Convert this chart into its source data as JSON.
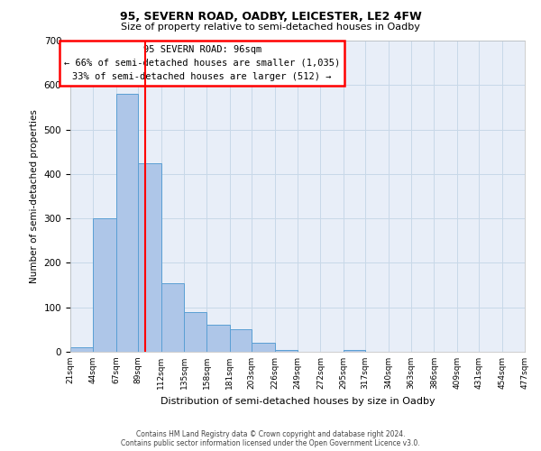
{
  "title1": "95, SEVERN ROAD, OADBY, LEICESTER, LE2 4FW",
  "title2": "Size of property relative to semi-detached houses in Oadby",
  "xlabel": "Distribution of semi-detached houses by size in Oadby",
  "ylabel": "Number of semi-detached properties",
  "footnote": "Contains HM Land Registry data © Crown copyright and database right 2024.\nContains public sector information licensed under the Open Government Licence v3.0.",
  "bin_edges": [
    21,
    44,
    67,
    89,
    112,
    135,
    158,
    181,
    203,
    226,
    249,
    272,
    295,
    317,
    340,
    363,
    386,
    409,
    431,
    454,
    477
  ],
  "bar_heights": [
    10,
    300,
    580,
    425,
    155,
    90,
    60,
    50,
    20,
    5,
    0,
    0,
    5,
    0,
    0,
    0,
    0,
    0,
    0,
    0
  ],
  "ylim": [
    0,
    700
  ],
  "yticks": [
    0,
    100,
    200,
    300,
    400,
    500,
    600,
    700
  ],
  "bar_color": "#aec6e8",
  "bar_edge_color": "#5a9fd4",
  "grid_color": "#c8d8e8",
  "bg_color": "#e8eef8",
  "red_line_x": 96,
  "annotation_text": "95 SEVERN ROAD: 96sqm\n← 66% of semi-detached houses are smaller (1,035)\n33% of semi-detached houses are larger (512) →",
  "x_tick_labels": [
    "21sqm",
    "44sqm",
    "67sqm",
    "89sqm",
    "112sqm",
    "135sqm",
    "158sqm",
    "181sqm",
    "203sqm",
    "226sqm",
    "249sqm",
    "272sqm",
    "295sqm",
    "317sqm",
    "340sqm",
    "363sqm",
    "386sqm",
    "409sqm",
    "431sqm",
    "454sqm",
    "477sqm"
  ]
}
